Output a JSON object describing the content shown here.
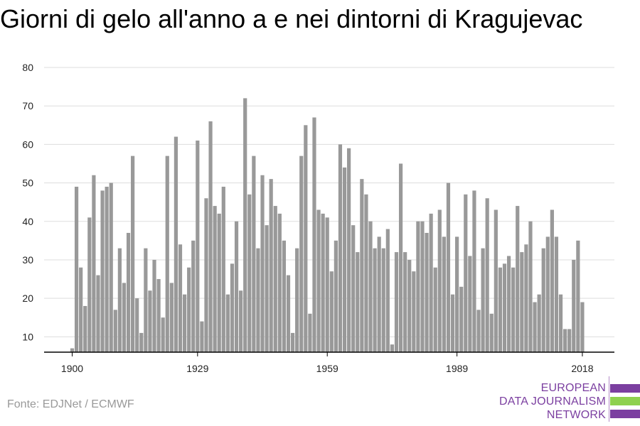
{
  "title": "Giorni di gelo all'anno a e nei dintorni di Kragujevac",
  "source": "Fonte: EDJNet / ECMWF",
  "logo": {
    "lines": [
      "EUROPEAN",
      "DATA JOURNALISM",
      "NETWORK"
    ],
    "colors": [
      "#7b3fa0",
      "#8fd14f",
      "#7b3fa0"
    ]
  },
  "colors": {
    "bar": "#999999",
    "grid": "#dddddd",
    "axis": "#000000"
  },
  "chart_data": {
    "type": "bar",
    "title": "Giorni di gelo all'anno a e nei dintorni di Kragujevac",
    "xlabel": "",
    "ylabel": "",
    "ylim": [
      6,
      80
    ],
    "yticks": [
      10,
      20,
      30,
      40,
      50,
      60,
      70,
      80
    ],
    "xticks": [
      1900,
      1929,
      1959,
      1989,
      2018
    ],
    "grid": true,
    "categories": [
      1900,
      1901,
      1902,
      1903,
      1904,
      1905,
      1906,
      1907,
      1908,
      1909,
      1910,
      1911,
      1912,
      1913,
      1914,
      1915,
      1916,
      1917,
      1918,
      1919,
      1920,
      1921,
      1922,
      1923,
      1924,
      1925,
      1926,
      1927,
      1928,
      1929,
      1930,
      1931,
      1932,
      1933,
      1934,
      1935,
      1936,
      1937,
      1938,
      1939,
      1940,
      1941,
      1942,
      1943,
      1944,
      1945,
      1946,
      1947,
      1948,
      1949,
      1950,
      1951,
      1952,
      1953,
      1954,
      1955,
      1956,
      1957,
      1958,
      1959,
      1960,
      1961,
      1962,
      1963,
      1964,
      1965,
      1966,
      1967,
      1968,
      1969,
      1970,
      1971,
      1972,
      1973,
      1974,
      1975,
      1976,
      1977,
      1978,
      1979,
      1980,
      1981,
      1982,
      1983,
      1984,
      1985,
      1986,
      1987,
      1988,
      1989,
      1990,
      1991,
      1992,
      1993,
      1994,
      1995,
      1996,
      1997,
      1998,
      1999,
      2000,
      2001,
      2002,
      2003,
      2004,
      2005,
      2006,
      2007,
      2008,
      2009,
      2010,
      2011,
      2012,
      2013,
      2014,
      2015,
      2016,
      2017,
      2018
    ],
    "values": [
      7,
      49,
      28,
      18,
      41,
      52,
      26,
      48,
      49,
      50,
      17,
      33,
      24,
      37,
      57,
      20,
      11,
      33,
      22,
      30,
      25,
      15,
      57,
      24,
      62,
      34,
      21,
      28,
      35,
      61,
      14,
      46,
      66,
      44,
      42,
      49,
      21,
      29,
      40,
      22,
      72,
      47,
      57,
      33,
      52,
      39,
      51,
      44,
      42,
      35,
      26,
      11,
      33,
      57,
      65,
      16,
      67,
      43,
      42,
      41,
      27,
      35,
      60,
      54,
      59,
      39,
      32,
      51,
      47,
      40,
      33,
      36,
      33,
      38,
      8,
      32,
      55,
      32,
      30,
      27,
      40,
      40,
      37,
      42,
      28,
      43,
      36,
      50,
      21,
      36,
      23,
      47,
      31,
      48,
      17,
      33,
      46,
      16,
      43,
      28,
      29,
      31,
      28,
      44,
      32,
      34,
      40,
      19,
      21,
      33,
      36,
      43,
      36,
      21,
      12,
      12,
      30,
      35,
      19
    ]
  }
}
